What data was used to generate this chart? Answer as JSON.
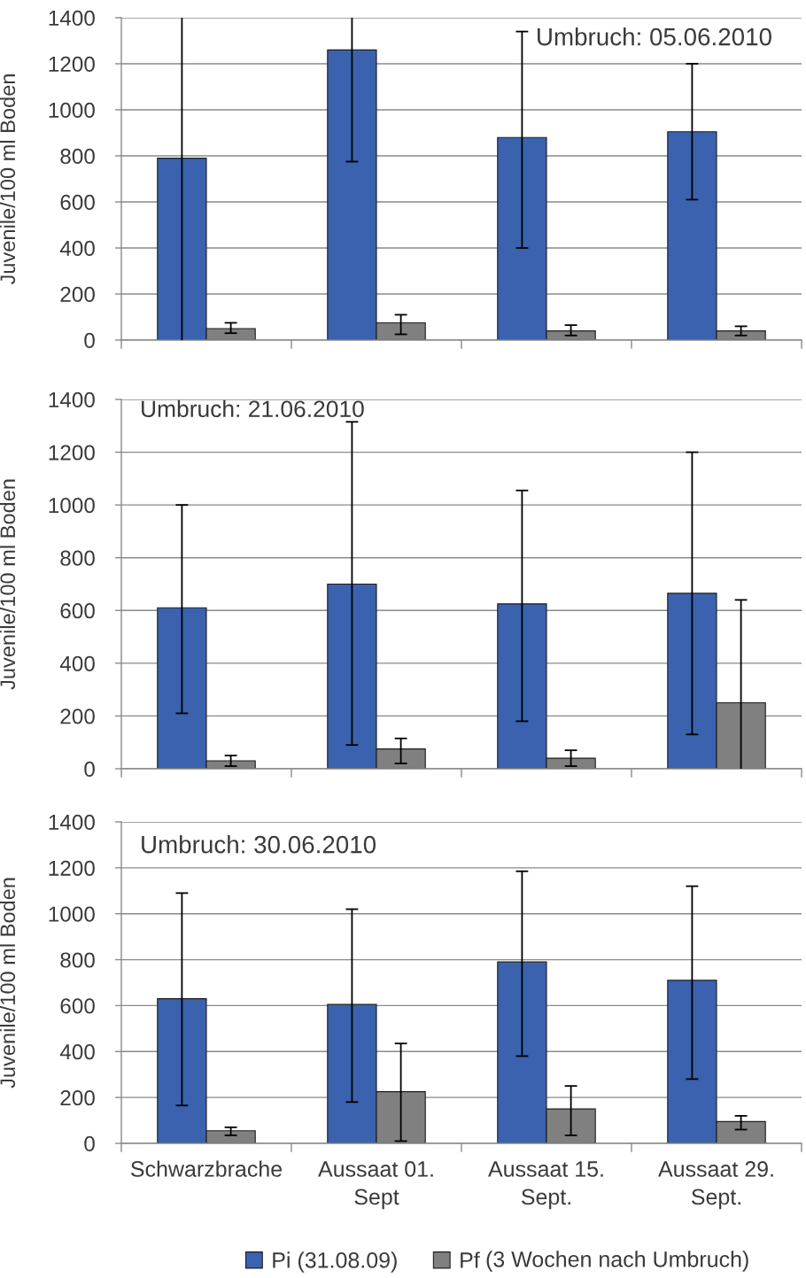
{
  "chart_data": [
    {
      "type": "bar",
      "annotations": [
        "Umbruch: 05.06.2010"
      ],
      "ylabel": "Juvenile/100 ml Boden",
      "categories": [
        null,
        null,
        null,
        null
      ],
      "ylim": [
        0,
        1400
      ],
      "yticks": [
        0,
        200,
        400,
        600,
        800,
        1000,
        1200,
        1400
      ],
      "grid": "y",
      "series": [
        {
          "color": "#3a62ae",
          "values": [
            790,
            1260,
            880,
            905
          ],
          "errors": [
            [
              0,
              1400
            ],
            [
              775,
              1400
            ],
            [
              400,
              1340
            ],
            [
              610,
              1200
            ]
          ]
        },
        {
          "color": "#808080",
          "values": [
            50,
            75,
            40,
            40
          ],
          "errors": [
            [
              30,
              75
            ],
            [
              25,
              110
            ],
            [
              20,
              65
            ],
            [
              20,
              60
            ]
          ]
        }
      ]
    },
    {
      "type": "bar",
      "annotations": [
        "Umbruch: 21.06.2010"
      ],
      "ylabel": "Juvenile/100 ml Boden",
      "categories": [
        null,
        null,
        null,
        null
      ],
      "ylim": [
        0,
        1400
      ],
      "yticks": [
        0,
        200,
        400,
        600,
        800,
        1000,
        1200,
        1400
      ],
      "grid": "y",
      "series": [
        {
          "color": "#3a62ae",
          "values": [
            610,
            700,
            625,
            665
          ],
          "errors": [
            [
              210,
              1000
            ],
            [
              90,
              1315
            ],
            [
              180,
              1055
            ],
            [
              130,
              1200
            ]
          ]
        },
        {
          "color": "#808080",
          "values": [
            30,
            75,
            40,
            250
          ],
          "errors": [
            [
              10,
              50
            ],
            [
              20,
              115
            ],
            [
              10,
              70
            ],
            [
              0,
              640
            ]
          ]
        }
      ]
    },
    {
      "type": "bar",
      "annotations": [
        "Umbruch: 30.06.2010",
        "(3 Wochen nach Umbruch)"
      ],
      "ylabel": "Juvenile/100 ml Boden",
      "categories": [
        "Schwarzbrache",
        "Aussaat 01.\nSept",
        "Aussaat 15.\nSept.",
        "Aussaat 29.\nSept."
      ],
      "ylim": [
        0,
        1400
      ],
      "yticks": [
        0,
        200,
        400,
        600,
        800,
        1000,
        1200,
        1400
      ],
      "grid": "y",
      "legend": "bottom",
      "series": [
        {
          "name": "Pi (31.08.09)",
          "color": "#3a62ae",
          "values": [
            630,
            605,
            790,
            710
          ],
          "errors": [
            [
              165,
              1090
            ],
            [
              180,
              1020
            ],
            [
              380,
              1185
            ],
            [
              280,
              1120
            ]
          ]
        },
        {
          "name": "Pf",
          "color": "#808080",
          "values": [
            55,
            225,
            150,
            95
          ],
          "errors": [
            [
              35,
              70
            ],
            [
              10,
              435
            ],
            [
              35,
              250
            ],
            [
              60,
              120
            ]
          ]
        }
      ]
    }
  ]
}
